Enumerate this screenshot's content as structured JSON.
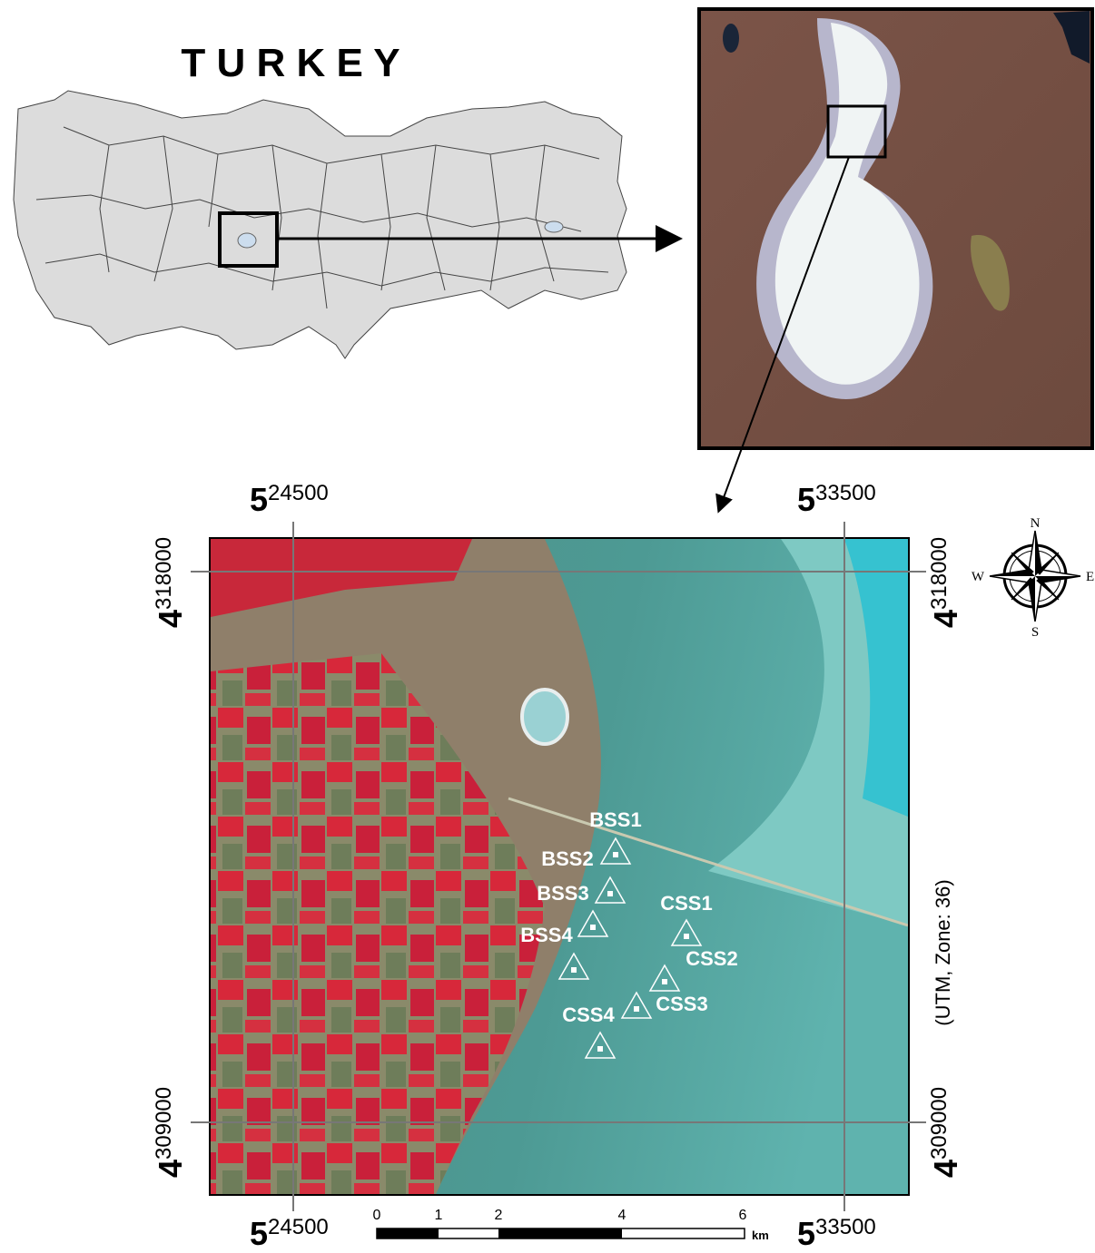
{
  "title": "T U R K E Y",
  "coordinates": {
    "easting": [
      {
        "lead": "5",
        "rest": "24500"
      },
      {
        "lead": "5",
        "rest": "33500"
      }
    ],
    "northing": [
      {
        "lead": "4",
        "rest": "318000"
      },
      {
        "lead": "4",
        "rest": "309000"
      }
    ],
    "projection": "(UTM, Zone: 36)"
  },
  "compass": {
    "north": "N",
    "east": "E",
    "south": "S",
    "west": "W"
  },
  "sites": [
    "BSS1",
    "BSS2",
    "BSS3",
    "BSS4",
    "CSS1",
    "CSS2",
    "CSS3",
    "CSS4"
  ],
  "scale_bar": {
    "ticks": [
      "0",
      "1",
      "2",
      "4",
      "6"
    ],
    "unit": "km"
  }
}
